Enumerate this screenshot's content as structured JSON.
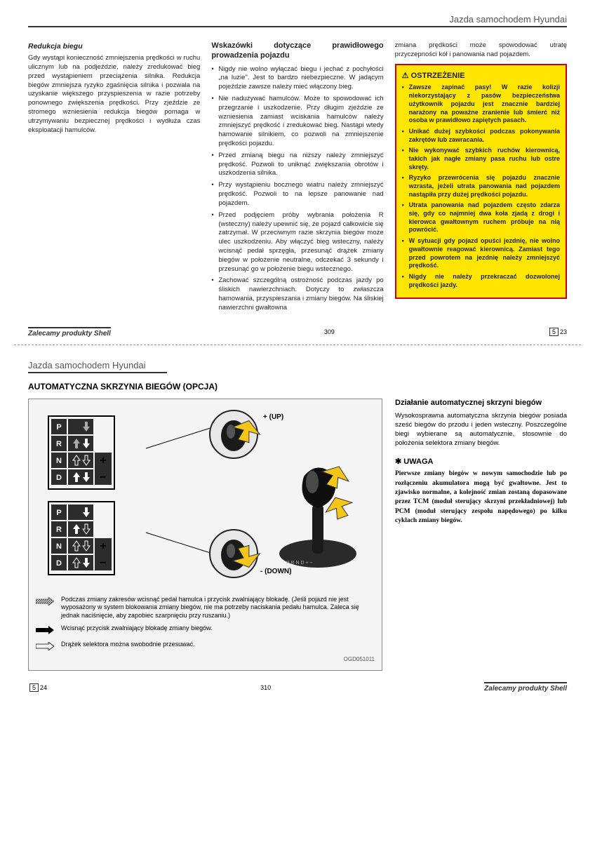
{
  "page1": {
    "header": "Jazda samochodem Hyundai",
    "col1": {
      "title": "Redukcja biegu",
      "para": "Gdy wystąpi konieczność zmniejszenia prędkości w ruchu ulicznym lub na podjeździe, należy zredukować bieg przed wystąpieniem przeciążenia silnika. Redukcja biegów zmniejsza ryzyko zgaśnięcia silnika i pozwala na uzyskanie większego przyspieszenia w razie potrzeby ponownego zwiększenia prędkości. Przy zjeździe ze stromego wzniesienia redukcja biegów pomaga w utrzymywaniu bezpiecznej prędkości i wydłuża czas eksploatacji hamulców."
    },
    "col2": {
      "title": "Wskazówki dotyczące prawidłowego prowadzenia pojazdu",
      "items": [
        "Nigdy nie wolno wyłączać biegu i jechać z pochyłości „na luzie\". Jest to bardzo niebezpieczne. W jadącym pojeździe zawsze należy mieć włączony bieg.",
        "Nie nadużywać hamulców. Może to spowodować ich przegrzanie i uszkodzenie. Przy długim zjeździe ze wzniesienia zamiast wciskania hamulców należy zmniejszyć prędkość i zredukować bieg. Nastąpi wtedy hamowanie silnikiem, co pozwoli na zmniejszenie prędkości pojazdu.",
        "Przed zmianą biegu na niższy należy zmniejszyć prędkość. Pozwoli to uniknąć zwiększania obrotów i uszkodzenia silnika.",
        "Przy wystąpieniu bocznego wiatru należy zmniejszyć prędkość. Pozwoli to na lepsze panowanie nad pojazdem.",
        "Przed podjęciem próby wybrania położenia R (wsteczny) należy upewnić się, że pojazd całkowicie się zatrzymał. W przeciwnym razie skrzynia biegów może ulec uszkodzeniu. Aby włączyć bieg wsteczny, należy wcisnąć pedał sprzęgła, przesunąć drążek zmiany biegów w położenie neutralne, odczekać 3 sekundy i przesunąć go w położenie biegu wstecznego.",
        "Zachować szczególną ostrożność podczas jazdy po śliskich nawierzchniach. Dotyczy to zwłaszcza hamowania, przyspieszania i zmiany biegów. Na śliskiej nawierzchni gwałtowna"
      ]
    },
    "col3": {
      "intro": "zmiana prędkości może spowodować utratę przyczepności kół i panowania nad pojazdem.",
      "warn_title": "OSTRZEŻENIE",
      "warn_items": [
        "Zawsze zapinać pasy! W razie kolizji niekorzystający z pasów bezpieczeństwa użytkownik pojazdu jest znacznie bardziej narażony na poważne zranienie lub śmierć niż osoba w prawidłowo zapiętych pasach.",
        "Unikać dużej szybkości podczas pokonywania zakrętów lub zawracania.",
        "Nie wykonywać szybkich ruchów kierownicą, takich jak nagłe zmiany pasa ruchu lub ostre skręty.",
        "Ryzyko przewrócenia się pojazdu znacznie wzrasta, jeżeli utrata panowania nad pojazdem nastąpiła przy dużej prędkości pojazdu.",
        "Utrata panowania nad pojazdem często zdarza się, gdy co najmniej dwa koła zjadą z drogi i kierowca gwałtownym ruchem próbuje na nią powrócić.",
        "W sytuacji gdy pojazd opuści jezdnię, nie wolno gwałtownie reagować kierownicą. Zamiast tego przed powrotem na jezdnię należy zmniejszyć prędkość.",
        "Nigdy nie należy przekraczać dozwolonej prędkości jazdy."
      ]
    },
    "footer": {
      "shell": "Zalecamy produkty Shell",
      "page": "309",
      "sec_a": "5",
      "sec_b": "23"
    }
  },
  "page2": {
    "header": "Jazda samochodem Hyundai",
    "section_title": "AUTOMATYCZNA SKRZYNIA BIEGÓW (OPCJA)",
    "fig": {
      "gears": [
        "P",
        "R",
        "N",
        "D"
      ],
      "up_label": "+ (UP)",
      "down_label": "- (DOWN)",
      "legend1": "Podczas zmiany zakresów wcisnąć pedał hamulca i przycisk zwalniający blokadę. (Jeśli pojazd nie jest wyposażony w system blokowania zmiany biegów, nie ma potrzeby naciskania pedału hamulca. Zaleca się jednak naciśnięcie, aby zapobiec szarpnięciu przy ruszaniu.)",
      "legend2": "Wcisnąć przycisk zwalniający blokadę zmiany biegów.",
      "legend3": "Drążek selektora można swobodnie przesuwać.",
      "id": "OGD051011"
    },
    "right": {
      "title": "Działanie automatycznej skrzyni biegów",
      "para": "Wysokosprawna automatyczna skrzynia biegów posiada sześć biegów do przodu i jeden wsteczny. Poszczególne biegi wybierane są automatycznie, stosownie do położenia selektora zmiany biegów.",
      "uwaga_title": "UWAGA",
      "uwaga_text": "Pierwsze zmiany biegów w nowym samochodzie lub po rozłączeniu akumulatora mogą być gwałtowne. Jest to zjawisko normalne, a kolejność zmian zostaną dopasowane przez TCM (moduł sterujący skrzyni przekładniowej) lub PCM (moduł sterujący zespołu napędowego) po kilku cyklach zmiany biegów."
    },
    "footer": {
      "shell": "Zalecamy produkty Shell",
      "page": "310",
      "sec_a": "5",
      "sec_b": "24"
    }
  }
}
